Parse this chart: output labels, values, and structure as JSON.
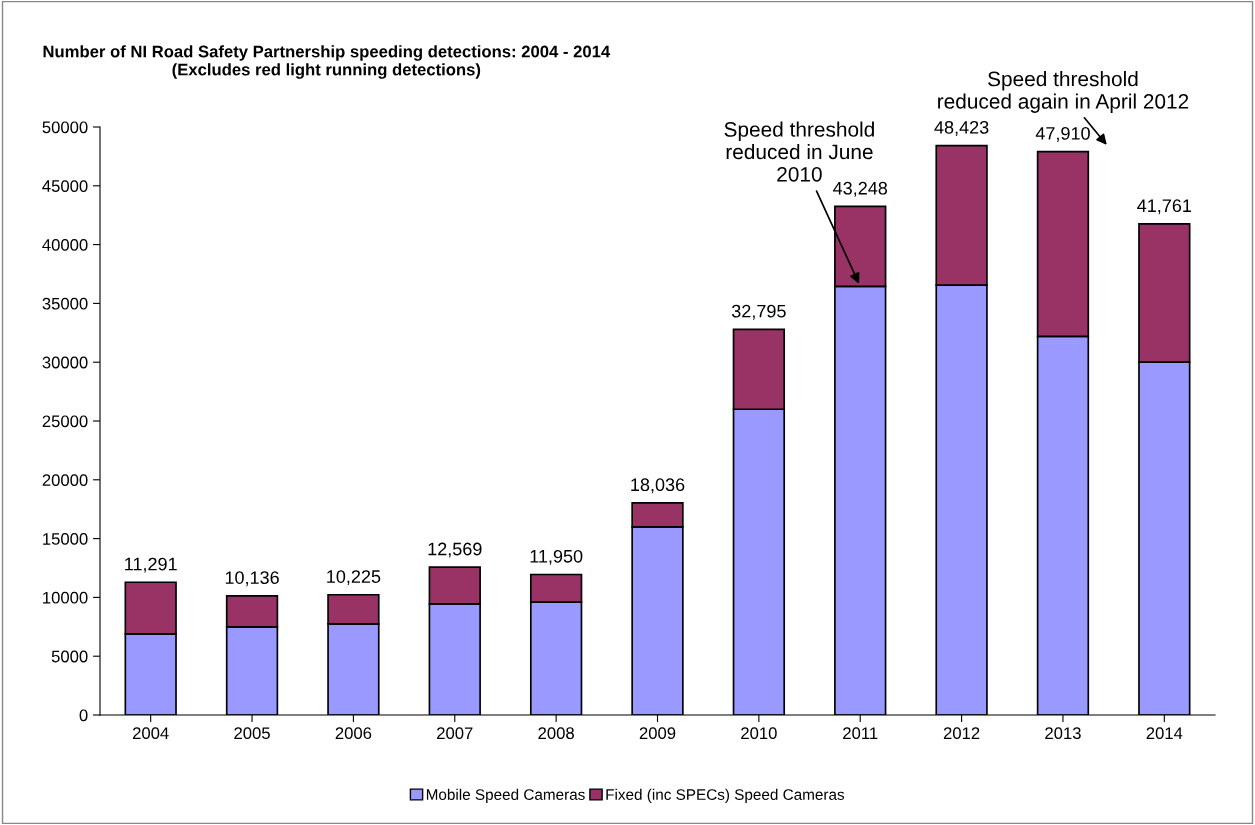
{
  "chart_data": {
    "type": "bar",
    "title": "Number of NI Road Safety Partnership speeding detections: 2004 - 2014\n(Excludes red light running detections)",
    "categories": [
      "2004",
      "2005",
      "2006",
      "2007",
      "2008",
      "2009",
      "2010",
      "2011",
      "2012",
      "2013",
      "2014"
    ],
    "stacked": true,
    "series": [
      {
        "name": "Mobile Speed Cameras",
        "color": "#9999ff",
        "values": [
          6900,
          7500,
          7750,
          9450,
          9600,
          16000,
          26000,
          36450,
          36550,
          32200,
          30000
        ]
      },
      {
        "name": "Fixed (inc SPECs) Speed Cameras",
        "color": "#993366",
        "values": [
          4391,
          2636,
          2475,
          3119,
          2350,
          2036,
          6795,
          6798,
          11873,
          15710,
          11761
        ]
      }
    ],
    "totals": [
      "11,291",
      "10,136",
      "10,225",
      "12,569",
      "11,950",
      "18,036",
      "32,795",
      "43,248",
      "48,423",
      "47,910",
      "41,761"
    ],
    "ylim": [
      0,
      50000
    ],
    "yticks": [
      0,
      5000,
      10000,
      15000,
      20000,
      25000,
      30000,
      35000,
      40000,
      45000,
      50000
    ],
    "grid": false,
    "legend": "bottom",
    "annotations": [
      {
        "text": "Speed threshold\nreduced in June\n2010",
        "x": "2011",
        "y": 36450
      },
      "Speed threshold\nreduced again in April 2012"
    ]
  }
}
